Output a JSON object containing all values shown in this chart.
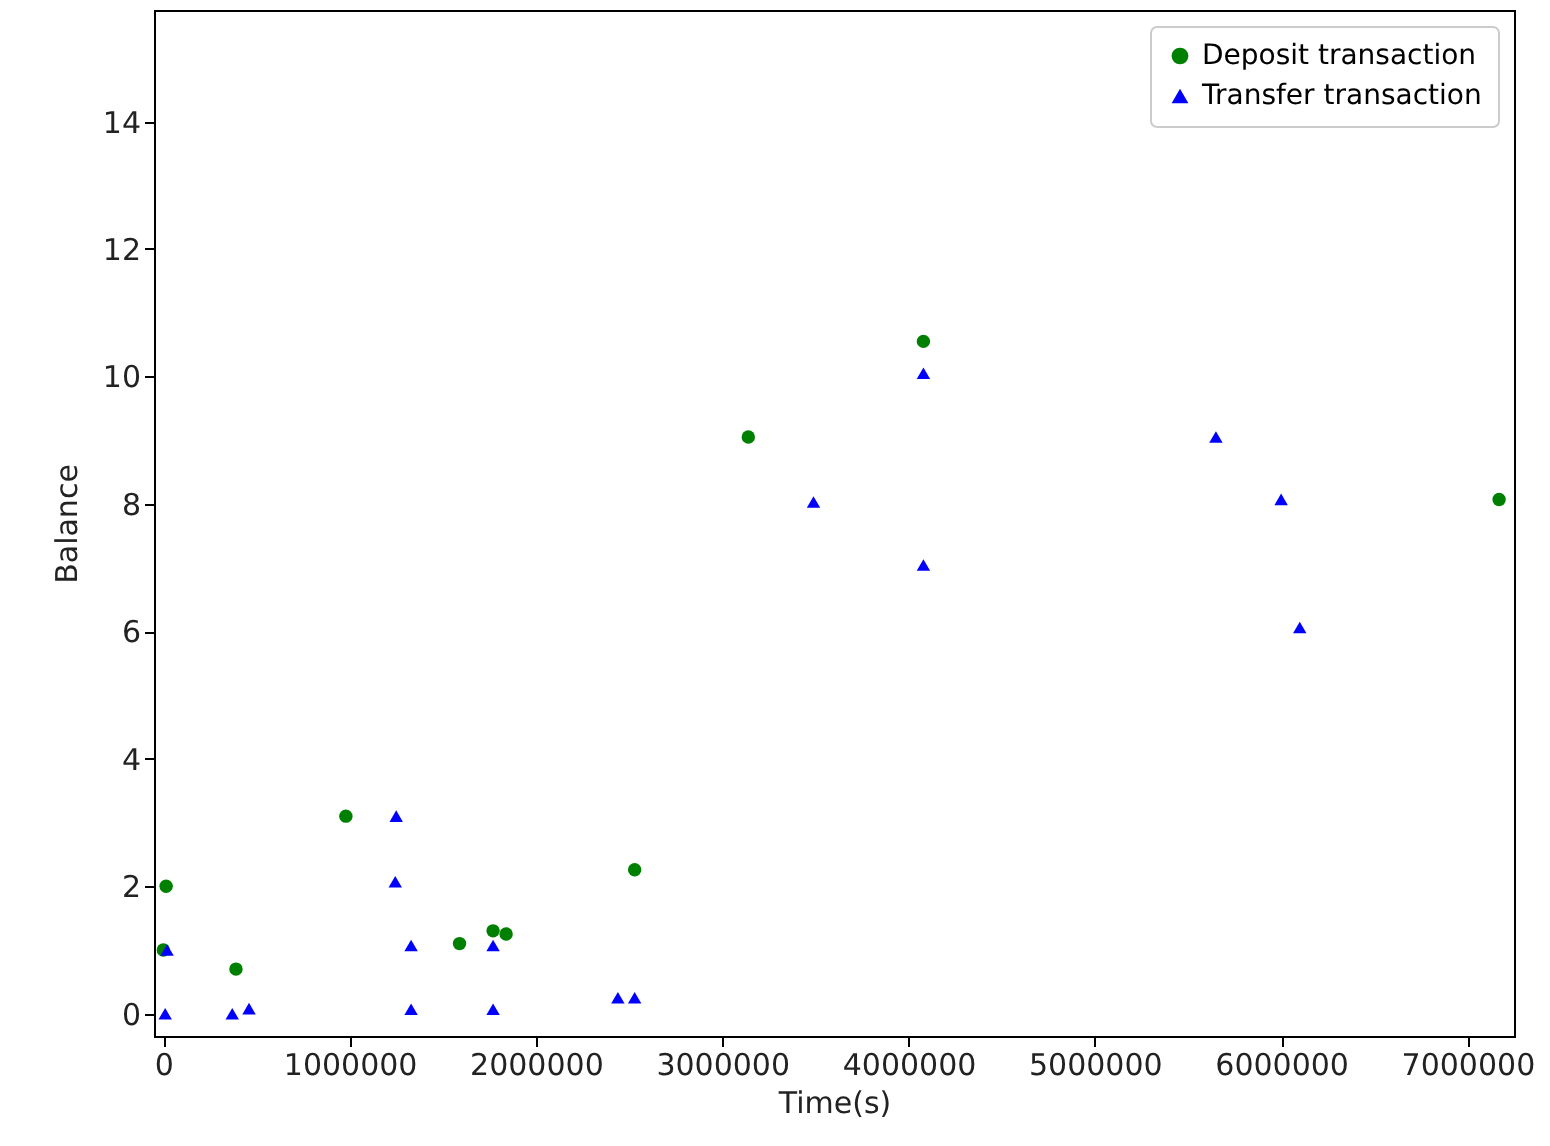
{
  "chart_data": {
    "type": "scatter",
    "xlabel": "Time(s)",
    "ylabel": "Balance",
    "xlim": [
      -50000,
      7250000
    ],
    "ylim": [
      -0.35,
      15.75
    ],
    "xticks": [
      0,
      1000000,
      2000000,
      3000000,
      4000000,
      5000000,
      6000000,
      7000000
    ],
    "yticks": [
      0,
      2,
      4,
      6,
      8,
      10,
      12,
      14
    ],
    "grid": false,
    "legend": "top right",
    "series": [
      {
        "name": "Deposit transaction",
        "color": "#008000",
        "marker": "circle",
        "x": [
          0,
          15000,
          390000,
          980000,
          1590000,
          1770000,
          1840000,
          2530000,
          3140000,
          4080000,
          7170000
        ],
        "values": [
          1.0,
          2.0,
          0.7,
          3.1,
          1.1,
          1.3,
          1.25,
          2.26,
          9.05,
          10.55,
          8.07
        ]
      },
      {
        "name": "Transfer transaction",
        "color": "#0000ff",
        "marker": "triangle",
        "x": [
          10000,
          20000,
          370000,
          460000,
          1250000,
          1245000,
          1330000,
          1330000,
          1770000,
          1770000,
          2440000,
          2530000,
          3490000,
          4080000,
          4080000,
          5650000,
          6000000,
          6100000
        ],
        "values": [
          0,
          1.0,
          0,
          0.08,
          3.1,
          2.07,
          1.07,
          0.07,
          1.07,
          0.07,
          0.25,
          0.25,
          8.03,
          10.05,
          7.04,
          9.05,
          8.07,
          6.06
        ]
      }
    ]
  }
}
